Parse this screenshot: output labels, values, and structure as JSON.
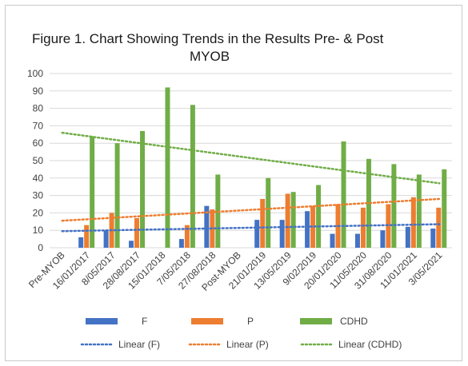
{
  "chart_data": {
    "type": "bar",
    "title_line1": "Figure 1. Chart Showing Trends in the Results Pre- & Post",
    "title_line2": "MYOB",
    "xlabel": "",
    "ylabel": "",
    "ylim": [
      0,
      100
    ],
    "yticks": [
      0,
      10,
      20,
      30,
      40,
      50,
      60,
      70,
      80,
      90,
      100
    ],
    "grid": true,
    "legend_position": "bottom",
    "categories": [
      "Pre-MYOB",
      "16/01/2017",
      "8/05/2017",
      "28/08/2017",
      "15/01/2018",
      "7/05/2018",
      "27/08/2018",
      "Post-MYOB",
      "21/01/2019",
      "13/05/2019",
      "9/02/2019",
      "20/01/2020",
      "11/05/2020",
      "31/08/2020",
      "11/01/2021",
      "3/05/2021"
    ],
    "series": [
      {
        "name": "F",
        "color": "#4472c4",
        "values": [
          null,
          6,
          10,
          4,
          null,
          5,
          24,
          null,
          16,
          16,
          21,
          8,
          8,
          10,
          12,
          11
        ]
      },
      {
        "name": "P",
        "color": "#ed7d31",
        "values": [
          null,
          13,
          20,
          17,
          null,
          13,
          22,
          null,
          28,
          31,
          24,
          25,
          23,
          25,
          29,
          23
        ]
      },
      {
        "name": "CDHD",
        "color": "#70ad47",
        "values": [
          null,
          64,
          60,
          67,
          92,
          82,
          42,
          null,
          40,
          32,
          36,
          61,
          51,
          48,
          42,
          45
        ]
      }
    ],
    "trendlines": [
      {
        "name": "Linear (F)",
        "color": "#4472c4",
        "start": 9.5,
        "end": 13.5
      },
      {
        "name": "Linear (P)",
        "color": "#ed7d31",
        "start": 15.5,
        "end": 28
      },
      {
        "name": "Linear (CDHD)",
        "color": "#70ad47",
        "start": 66,
        "end": 37
      }
    ]
  }
}
